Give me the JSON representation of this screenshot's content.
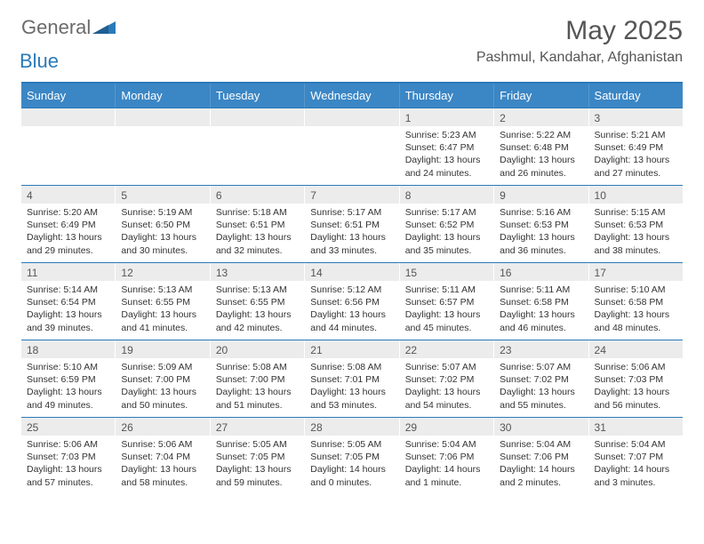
{
  "logo": {
    "text1": "General",
    "text2": "Blue"
  },
  "title": "May 2025",
  "location": "Pashmul, Kandahar, Afghanistan",
  "weekdays": [
    "Sunday",
    "Monday",
    "Tuesday",
    "Wednesday",
    "Thursday",
    "Friday",
    "Saturday"
  ],
  "colors": {
    "header_bg": "#3b86c5",
    "border": "#2a7ab9",
    "daynum_bg": "#ececec",
    "text": "#333333",
    "title_text": "#555555",
    "logo_gray": "#6b6b6b",
    "logo_blue": "#2a7ab9"
  },
  "typography": {
    "title_fontsize": 30,
    "location_fontsize": 16,
    "weekday_fontsize": 13,
    "daynum_fontsize": 12,
    "body_fontsize": 10.5
  },
  "weeks": [
    [
      {
        "day": "",
        "sunrise": "",
        "sunset": "",
        "daylight": ""
      },
      {
        "day": "",
        "sunrise": "",
        "sunset": "",
        "daylight": ""
      },
      {
        "day": "",
        "sunrise": "",
        "sunset": "",
        "daylight": ""
      },
      {
        "day": "",
        "sunrise": "",
        "sunset": "",
        "daylight": ""
      },
      {
        "day": "1",
        "sunrise": "Sunrise: 5:23 AM",
        "sunset": "Sunset: 6:47 PM",
        "daylight": "Daylight: 13 hours and 24 minutes."
      },
      {
        "day": "2",
        "sunrise": "Sunrise: 5:22 AM",
        "sunset": "Sunset: 6:48 PM",
        "daylight": "Daylight: 13 hours and 26 minutes."
      },
      {
        "day": "3",
        "sunrise": "Sunrise: 5:21 AM",
        "sunset": "Sunset: 6:49 PM",
        "daylight": "Daylight: 13 hours and 27 minutes."
      }
    ],
    [
      {
        "day": "4",
        "sunrise": "Sunrise: 5:20 AM",
        "sunset": "Sunset: 6:49 PM",
        "daylight": "Daylight: 13 hours and 29 minutes."
      },
      {
        "day": "5",
        "sunrise": "Sunrise: 5:19 AM",
        "sunset": "Sunset: 6:50 PM",
        "daylight": "Daylight: 13 hours and 30 minutes."
      },
      {
        "day": "6",
        "sunrise": "Sunrise: 5:18 AM",
        "sunset": "Sunset: 6:51 PM",
        "daylight": "Daylight: 13 hours and 32 minutes."
      },
      {
        "day": "7",
        "sunrise": "Sunrise: 5:17 AM",
        "sunset": "Sunset: 6:51 PM",
        "daylight": "Daylight: 13 hours and 33 minutes."
      },
      {
        "day": "8",
        "sunrise": "Sunrise: 5:17 AM",
        "sunset": "Sunset: 6:52 PM",
        "daylight": "Daylight: 13 hours and 35 minutes."
      },
      {
        "day": "9",
        "sunrise": "Sunrise: 5:16 AM",
        "sunset": "Sunset: 6:53 PM",
        "daylight": "Daylight: 13 hours and 36 minutes."
      },
      {
        "day": "10",
        "sunrise": "Sunrise: 5:15 AM",
        "sunset": "Sunset: 6:53 PM",
        "daylight": "Daylight: 13 hours and 38 minutes."
      }
    ],
    [
      {
        "day": "11",
        "sunrise": "Sunrise: 5:14 AM",
        "sunset": "Sunset: 6:54 PM",
        "daylight": "Daylight: 13 hours and 39 minutes."
      },
      {
        "day": "12",
        "sunrise": "Sunrise: 5:13 AM",
        "sunset": "Sunset: 6:55 PM",
        "daylight": "Daylight: 13 hours and 41 minutes."
      },
      {
        "day": "13",
        "sunrise": "Sunrise: 5:13 AM",
        "sunset": "Sunset: 6:55 PM",
        "daylight": "Daylight: 13 hours and 42 minutes."
      },
      {
        "day": "14",
        "sunrise": "Sunrise: 5:12 AM",
        "sunset": "Sunset: 6:56 PM",
        "daylight": "Daylight: 13 hours and 44 minutes."
      },
      {
        "day": "15",
        "sunrise": "Sunrise: 5:11 AM",
        "sunset": "Sunset: 6:57 PM",
        "daylight": "Daylight: 13 hours and 45 minutes."
      },
      {
        "day": "16",
        "sunrise": "Sunrise: 5:11 AM",
        "sunset": "Sunset: 6:58 PM",
        "daylight": "Daylight: 13 hours and 46 minutes."
      },
      {
        "day": "17",
        "sunrise": "Sunrise: 5:10 AM",
        "sunset": "Sunset: 6:58 PM",
        "daylight": "Daylight: 13 hours and 48 minutes."
      }
    ],
    [
      {
        "day": "18",
        "sunrise": "Sunrise: 5:10 AM",
        "sunset": "Sunset: 6:59 PM",
        "daylight": "Daylight: 13 hours and 49 minutes."
      },
      {
        "day": "19",
        "sunrise": "Sunrise: 5:09 AM",
        "sunset": "Sunset: 7:00 PM",
        "daylight": "Daylight: 13 hours and 50 minutes."
      },
      {
        "day": "20",
        "sunrise": "Sunrise: 5:08 AM",
        "sunset": "Sunset: 7:00 PM",
        "daylight": "Daylight: 13 hours and 51 minutes."
      },
      {
        "day": "21",
        "sunrise": "Sunrise: 5:08 AM",
        "sunset": "Sunset: 7:01 PM",
        "daylight": "Daylight: 13 hours and 53 minutes."
      },
      {
        "day": "22",
        "sunrise": "Sunrise: 5:07 AM",
        "sunset": "Sunset: 7:02 PM",
        "daylight": "Daylight: 13 hours and 54 minutes."
      },
      {
        "day": "23",
        "sunrise": "Sunrise: 5:07 AM",
        "sunset": "Sunset: 7:02 PM",
        "daylight": "Daylight: 13 hours and 55 minutes."
      },
      {
        "day": "24",
        "sunrise": "Sunrise: 5:06 AM",
        "sunset": "Sunset: 7:03 PM",
        "daylight": "Daylight: 13 hours and 56 minutes."
      }
    ],
    [
      {
        "day": "25",
        "sunrise": "Sunrise: 5:06 AM",
        "sunset": "Sunset: 7:03 PM",
        "daylight": "Daylight: 13 hours and 57 minutes."
      },
      {
        "day": "26",
        "sunrise": "Sunrise: 5:06 AM",
        "sunset": "Sunset: 7:04 PM",
        "daylight": "Daylight: 13 hours and 58 minutes."
      },
      {
        "day": "27",
        "sunrise": "Sunrise: 5:05 AM",
        "sunset": "Sunset: 7:05 PM",
        "daylight": "Daylight: 13 hours and 59 minutes."
      },
      {
        "day": "28",
        "sunrise": "Sunrise: 5:05 AM",
        "sunset": "Sunset: 7:05 PM",
        "daylight": "Daylight: 14 hours and 0 minutes."
      },
      {
        "day": "29",
        "sunrise": "Sunrise: 5:04 AM",
        "sunset": "Sunset: 7:06 PM",
        "daylight": "Daylight: 14 hours and 1 minute."
      },
      {
        "day": "30",
        "sunrise": "Sunrise: 5:04 AM",
        "sunset": "Sunset: 7:06 PM",
        "daylight": "Daylight: 14 hours and 2 minutes."
      },
      {
        "day": "31",
        "sunrise": "Sunrise: 5:04 AM",
        "sunset": "Sunset: 7:07 PM",
        "daylight": "Daylight: 14 hours and 3 minutes."
      }
    ]
  ]
}
